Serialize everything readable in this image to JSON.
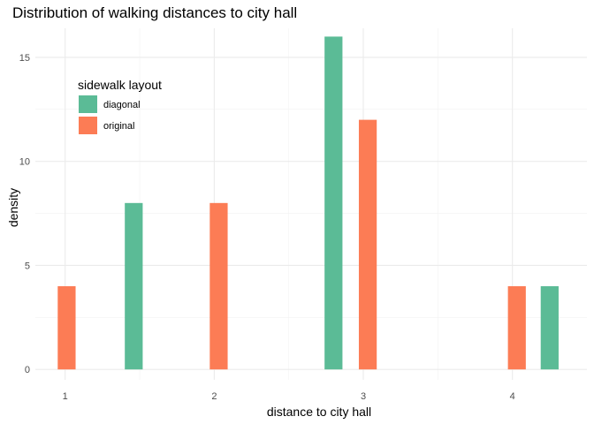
{
  "chart_data": {
    "type": "bar",
    "title": "Distribution of walking distances to city hall",
    "xlabel": "distance to city hall",
    "ylabel": "density",
    "xlim": [
      0.8,
      4.5
    ],
    "ylim": [
      -0.5,
      16.4
    ],
    "x_ticks": [
      1,
      2,
      3,
      4
    ],
    "y_ticks": [
      0,
      5,
      10,
      15
    ],
    "bar_width": 0.12,
    "grid": true,
    "legend": {
      "title": "sidewalk layout",
      "position": "top-left"
    },
    "series": [
      {
        "name": "diagonal",
        "color": "#5BBB96",
        "points": [
          {
            "x": 1.46,
            "y": 8
          },
          {
            "x": 2.8,
            "y": 16
          },
          {
            "x": 4.25,
            "y": 4
          }
        ]
      },
      {
        "name": "original",
        "color": "#FC7C55",
        "points": [
          {
            "x": 1.01,
            "y": 4
          },
          {
            "x": 2.03,
            "y": 8
          },
          {
            "x": 3.03,
            "y": 12
          },
          {
            "x": 4.03,
            "y": 4
          }
        ]
      }
    ]
  }
}
